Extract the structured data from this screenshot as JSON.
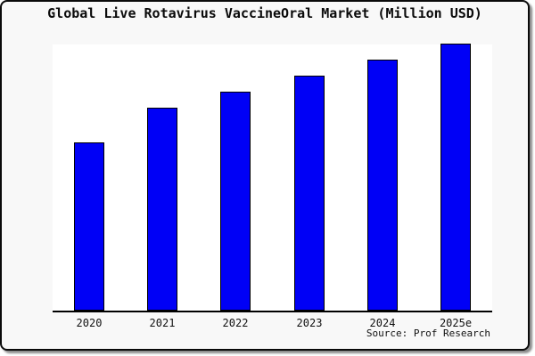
{
  "page": {
    "background_color": "#ffffff",
    "card_background": "#f8f8f8",
    "card_border_color": "#0a0a0a"
  },
  "chart_data": {
    "type": "bar",
    "title": "Global Live Rotavirus VaccineOral Market (Million USD)",
    "categories": [
      "2020",
      "2021",
      "2022",
      "2023",
      "2024",
      "2025e"
    ],
    "values": [
      63,
      76,
      82,
      88,
      94,
      100
    ],
    "xlabel": "",
    "ylabel": "",
    "ylim": [
      0,
      100
    ],
    "grid": false,
    "legend": false,
    "value_axis_labeled": false,
    "source": "Source: Prof Research",
    "colors": {
      "bar_fill": "#0000f6",
      "bar_border": "#000000",
      "plot_background": "#ffffff",
      "axis_line": "#000000"
    }
  }
}
